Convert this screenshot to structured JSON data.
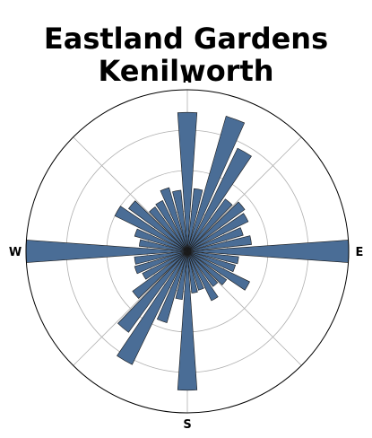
{
  "chart_data": {
    "type": "polar-bar",
    "title_lines": [
      "Eastland Gardens",
      "Kenilworth"
    ],
    "directions": [
      "N",
      "E",
      "S",
      "W"
    ],
    "bar_color": "#4a6d96",
    "grid_rings": [
      0.25,
      0.5,
      0.75
    ],
    "rmax": 1.0,
    "grid": true,
    "sectors": 36,
    "angles_deg": [
      0,
      10,
      20,
      30,
      40,
      50,
      60,
      70,
      80,
      90,
      100,
      110,
      120,
      130,
      140,
      150,
      160,
      170,
      180,
      190,
      200,
      210,
      220,
      230,
      240,
      250,
      260,
      270,
      280,
      290,
      300,
      310,
      320,
      330,
      340,
      350
    ],
    "values": [
      0.86,
      0.39,
      0.87,
      0.71,
      0.4,
      0.44,
      0.42,
      0.36,
      0.4,
      1.0,
      0.32,
      0.31,
      0.43,
      0.3,
      0.27,
      0.34,
      0.25,
      0.26,
      0.86,
      0.3,
      0.46,
      0.78,
      0.62,
      0.42,
      0.31,
      0.34,
      0.33,
      1.0,
      0.3,
      0.34,
      0.5,
      0.45,
      0.34,
      0.35,
      0.41,
      0.38
    ]
  }
}
